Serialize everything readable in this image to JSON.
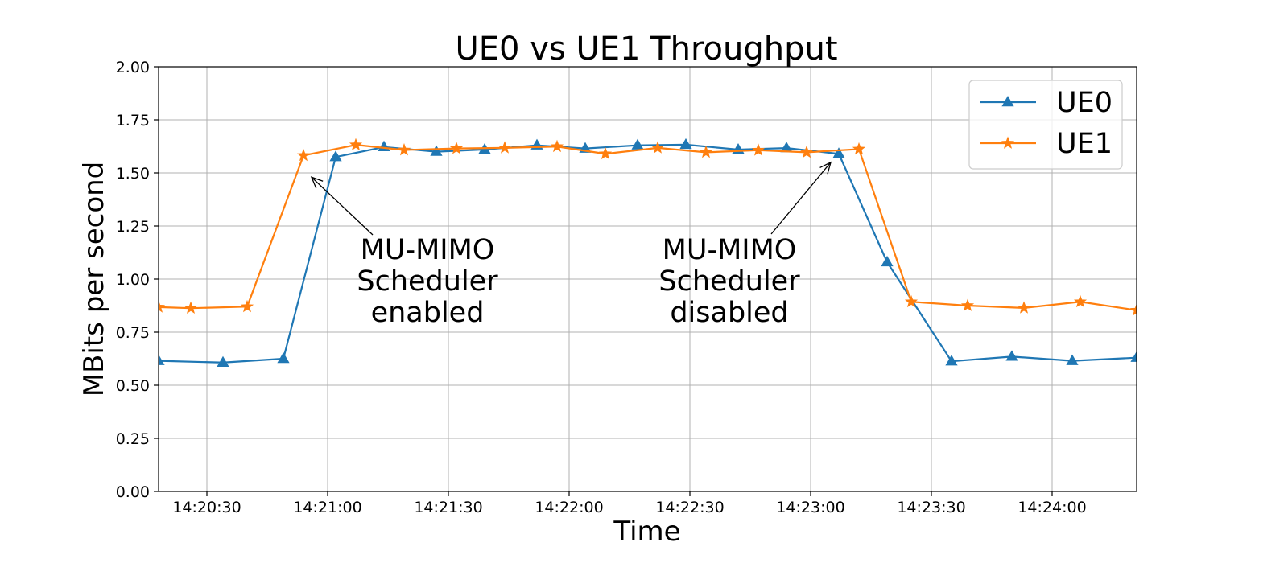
{
  "chart_data": {
    "type": "line",
    "title": "UE0 vs UE1 Throughput",
    "xlabel": "Time",
    "ylabel": "MBits per second",
    "ylim": [
      0,
      2.0
    ],
    "xlim": [
      "14:20:18",
      "14:24:21"
    ],
    "x_ticks": [
      "14:20:30",
      "14:21:00",
      "14:21:30",
      "14:22:00",
      "14:22:30",
      "14:23:00",
      "14:23:30",
      "14:24:00"
    ],
    "y_ticks": [
      "0.00",
      "0.25",
      "0.50",
      "0.75",
      "1.00",
      "1.25",
      "1.50",
      "1.75",
      "2.00"
    ],
    "grid": true,
    "legend_position": "top-right",
    "series": [
      {
        "name": "UE0",
        "color": "#1f77b4",
        "marker": "triangle",
        "points": [
          {
            "x": "14:20:18",
            "y": 0.615
          },
          {
            "x": "14:20:34",
            "y": 0.607
          },
          {
            "x": "14:20:49",
            "y": 0.625
          },
          {
            "x": "14:21:02",
            "y": 1.575
          },
          {
            "x": "14:21:14",
            "y": 1.622
          },
          {
            "x": "14:21:27",
            "y": 1.6
          },
          {
            "x": "14:21:39",
            "y": 1.61
          },
          {
            "x": "14:21:52",
            "y": 1.63
          },
          {
            "x": "14:22:04",
            "y": 1.615
          },
          {
            "x": "14:22:17",
            "y": 1.63
          },
          {
            "x": "14:22:29",
            "y": 1.633
          },
          {
            "x": "14:22:42",
            "y": 1.61
          },
          {
            "x": "14:22:54",
            "y": 1.617
          },
          {
            "x": "14:23:07",
            "y": 1.59
          },
          {
            "x": "14:23:19",
            "y": 1.08
          },
          {
            "x": "14:23:35",
            "y": 0.613
          },
          {
            "x": "14:23:50",
            "y": 0.635
          },
          {
            "x": "14:24:05",
            "y": 0.615
          },
          {
            "x": "14:24:21",
            "y": 0.63
          }
        ]
      },
      {
        "name": "UE1",
        "color": "#ff7f0e",
        "marker": "star",
        "points": [
          {
            "x": "14:20:18",
            "y": 0.868
          },
          {
            "x": "14:20:26",
            "y": 0.863
          },
          {
            "x": "14:20:40",
            "y": 0.87
          },
          {
            "x": "14:20:54",
            "y": 1.582
          },
          {
            "x": "14:21:07",
            "y": 1.632
          },
          {
            "x": "14:21:19",
            "y": 1.608
          },
          {
            "x": "14:21:32",
            "y": 1.615
          },
          {
            "x": "14:21:44",
            "y": 1.618
          },
          {
            "x": "14:21:57",
            "y": 1.624
          },
          {
            "x": "14:22:09",
            "y": 1.59
          },
          {
            "x": "14:22:22",
            "y": 1.618
          },
          {
            "x": "14:22:34",
            "y": 1.597
          },
          {
            "x": "14:22:47",
            "y": 1.607
          },
          {
            "x": "14:22:59",
            "y": 1.597
          },
          {
            "x": "14:23:12",
            "y": 1.612
          },
          {
            "x": "14:23:25",
            "y": 0.893
          },
          {
            "x": "14:23:39",
            "y": 0.875
          },
          {
            "x": "14:23:53",
            "y": 0.864
          },
          {
            "x": "14:24:07",
            "y": 0.893
          },
          {
            "x": "14:24:21",
            "y": 0.853
          }
        ]
      }
    ],
    "annotations": [
      {
        "lines": [
          "MU-MIMO",
          "Scheduler",
          "enabled"
        ],
        "arrow_to": {
          "x": "14:20:56",
          "y": 1.48
        }
      },
      {
        "lines": [
          "MU-MIMO",
          "Scheduler",
          "disabled"
        ],
        "arrow_to": {
          "x": "14:23:05",
          "y": 1.55
        }
      }
    ]
  }
}
